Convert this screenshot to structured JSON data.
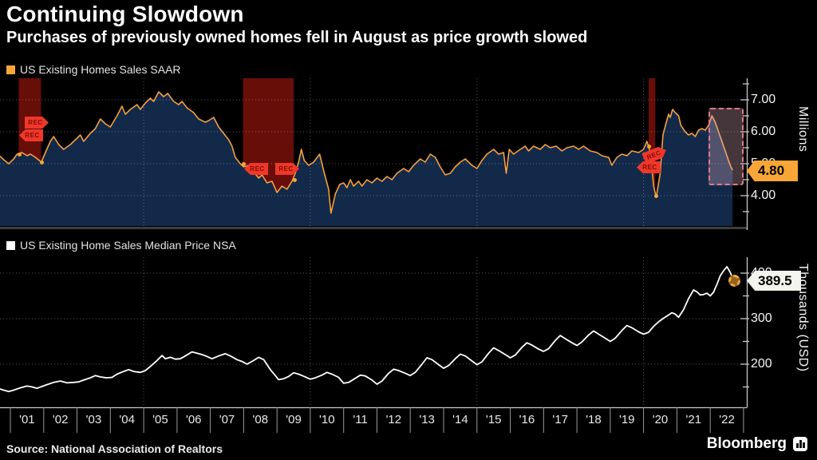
{
  "header": {
    "title": "Continuing Slowdown",
    "subtitle": "Purchases of previously owned homes fell in August as price growth slowed"
  },
  "charts": {
    "top": {
      "legend": "US Existing Homes Sales SAAR",
      "legend_color": "#f7a637",
      "line_color": "#f5a03c",
      "fill_color": "#13294a",
      "ylabel": "Millions",
      "yticks": [
        "7.00",
        "6.00",
        "5.00",
        "4.00"
      ],
      "tag": "4.80",
      "rec_label": "REC"
    },
    "bottom": {
      "legend": "US Existing Home Sales Median Price NSA",
      "legend_color": "#ffffff",
      "line_color": "#ffffff",
      "ylabel": "Thousands (USD)",
      "yticks": [
        "400",
        "300",
        "200"
      ],
      "tag": "389.5"
    }
  },
  "xaxis": {
    "labels": [
      "'01",
      "'02",
      "'03",
      "'04",
      "'05",
      "'06",
      "'07",
      "'08",
      "'09",
      "'10",
      "'11",
      "'12",
      "'13",
      "'14",
      "'15",
      "'16",
      "'17",
      "'18",
      "'19",
      "'20",
      "'21",
      "'22"
    ]
  },
  "footer": {
    "source": "Source: National Association of Realtors",
    "brand": "Bloomberg"
  },
  "chart_data": [
    {
      "type": "line",
      "name": "US Existing Homes Sales SAAR",
      "units": "millions",
      "ylim": [
        3.0,
        7.6
      ],
      "xlim": [
        2000.67,
        2023.0
      ],
      "last_value": 4.8,
      "grid_values": [
        7.0,
        6.0,
        5.0,
        4.0
      ],
      "vertical_grid_years": [
        2005,
        2010,
        2015,
        2020
      ],
      "recessions": [
        [
          2001.25,
          2001.92
        ],
        [
          2007.98,
          2009.5
        ],
        [
          2020.15,
          2020.35
        ]
      ],
      "highlight_box": {
        "x": [
          2021.95,
          2022.9
        ],
        "y": [
          4.42,
          6.8
        ]
      },
      "points": [
        [
          2000.67,
          5.25
        ],
        [
          2000.83,
          5.1
        ],
        [
          2000.95,
          5.0
        ],
        [
          2001.1,
          5.15
        ],
        [
          2001.2,
          5.3
        ],
        [
          2001.35,
          5.35
        ],
        [
          2001.5,
          5.25
        ],
        [
          2001.6,
          5.3
        ],
        [
          2001.75,
          5.2
        ],
        [
          2001.93,
          5.05
        ],
        [
          2002.05,
          5.35
        ],
        [
          2002.2,
          5.7
        ],
        [
          2002.3,
          5.85
        ],
        [
          2002.45,
          5.6
        ],
        [
          2002.6,
          5.45
        ],
        [
          2002.8,
          5.6
        ],
        [
          2002.95,
          5.75
        ],
        [
          2003.1,
          5.9
        ],
        [
          2003.2,
          5.7
        ],
        [
          2003.4,
          5.95
        ],
        [
          2003.55,
          6.1
        ],
        [
          2003.7,
          6.4
        ],
        [
          2003.85,
          6.25
        ],
        [
          2004.0,
          6.15
        ],
        [
          2004.2,
          6.5
        ],
        [
          2004.35,
          6.8
        ],
        [
          2004.45,
          6.55
        ],
        [
          2004.6,
          6.7
        ],
        [
          2004.8,
          6.85
        ],
        [
          2004.9,
          6.7
        ],
        [
          2005.05,
          6.9
        ],
        [
          2005.2,
          7.05
        ],
        [
          2005.3,
          6.95
        ],
        [
          2005.45,
          7.25
        ],
        [
          2005.6,
          7.1
        ],
        [
          2005.72,
          7.2
        ],
        [
          2005.9,
          6.95
        ],
        [
          2006.05,
          6.85
        ],
        [
          2006.15,
          6.95
        ],
        [
          2006.3,
          6.75
        ],
        [
          2006.5,
          6.6
        ],
        [
          2006.65,
          6.4
        ],
        [
          2006.85,
          6.3
        ],
        [
          2006.95,
          6.35
        ],
        [
          2007.1,
          6.45
        ],
        [
          2007.25,
          6.15
        ],
        [
          2007.4,
          5.95
        ],
        [
          2007.55,
          5.75
        ],
        [
          2007.65,
          5.55
        ],
        [
          2007.75,
          5.2
        ],
        [
          2007.9,
          5.0
        ],
        [
          2008.0,
          4.9
        ],
        [
          2008.15,
          4.95
        ],
        [
          2008.3,
          4.75
        ],
        [
          2008.45,
          4.55
        ],
        [
          2008.55,
          4.65
        ],
        [
          2008.7,
          4.4
        ],
        [
          2008.85,
          4.45
        ],
        [
          2009.0,
          4.1
        ],
        [
          2009.15,
          4.3
        ],
        [
          2009.3,
          4.2
        ],
        [
          2009.45,
          4.45
        ],
        [
          2009.55,
          4.7
        ],
        [
          2009.65,
          5.05
        ],
        [
          2009.73,
          5.45
        ],
        [
          2009.82,
          5.1
        ],
        [
          2009.95,
          4.95
        ],
        [
          2010.1,
          5.05
        ],
        [
          2010.28,
          5.3
        ],
        [
          2010.42,
          4.7
        ],
        [
          2010.55,
          4.2
        ],
        [
          2010.62,
          3.45
        ],
        [
          2010.75,
          4.05
        ],
        [
          2010.88,
          4.35
        ],
        [
          2011.0,
          4.4
        ],
        [
          2011.1,
          4.25
        ],
        [
          2011.2,
          4.5
        ],
        [
          2011.3,
          4.3
        ],
        [
          2011.45,
          4.45
        ],
        [
          2011.55,
          4.3
        ],
        [
          2011.7,
          4.5
        ],
        [
          2011.85,
          4.4
        ],
        [
          2012.0,
          4.55
        ],
        [
          2012.15,
          4.45
        ],
        [
          2012.3,
          4.6
        ],
        [
          2012.45,
          4.5
        ],
        [
          2012.6,
          4.7
        ],
        [
          2012.8,
          4.85
        ],
        [
          2012.95,
          4.75
        ],
        [
          2013.1,
          4.95
        ],
        [
          2013.3,
          5.15
        ],
        [
          2013.45,
          5.05
        ],
        [
          2013.6,
          5.3
        ],
        [
          2013.75,
          5.2
        ],
        [
          2013.9,
          4.9
        ],
        [
          2014.05,
          4.65
        ],
        [
          2014.2,
          4.7
        ],
        [
          2014.35,
          4.9
        ],
        [
          2014.5,
          5.05
        ],
        [
          2014.65,
          5.15
        ],
        [
          2014.85,
          4.95
        ],
        [
          2015.0,
          4.85
        ],
        [
          2015.15,
          5.1
        ],
        [
          2015.3,
          5.3
        ],
        [
          2015.5,
          5.45
        ],
        [
          2015.65,
          5.3
        ],
        [
          2015.8,
          5.35
        ],
        [
          2015.88,
          4.7
        ],
        [
          2015.97,
          5.45
        ],
        [
          2016.1,
          5.3
        ],
        [
          2016.3,
          5.45
        ],
        [
          2016.45,
          5.55
        ],
        [
          2016.55,
          5.4
        ],
        [
          2016.7,
          5.55
        ],
        [
          2016.9,
          5.45
        ],
        [
          2017.05,
          5.6
        ],
        [
          2017.2,
          5.5
        ],
        [
          2017.38,
          5.55
        ],
        [
          2017.55,
          5.4
        ],
        [
          2017.7,
          5.5
        ],
        [
          2017.9,
          5.55
        ],
        [
          2018.05,
          5.45
        ],
        [
          2018.2,
          5.55
        ],
        [
          2018.4,
          5.4
        ],
        [
          2018.6,
          5.35
        ],
        [
          2018.75,
          5.25
        ],
        [
          2018.95,
          5.2
        ],
        [
          2019.05,
          4.95
        ],
        [
          2019.2,
          5.2
        ],
        [
          2019.35,
          5.3
        ],
        [
          2019.5,
          5.25
        ],
        [
          2019.65,
          5.4
        ],
        [
          2019.85,
          5.35
        ],
        [
          2020.0,
          5.45
        ],
        [
          2020.1,
          5.7
        ],
        [
          2020.22,
          5.3
        ],
        [
          2020.3,
          4.3
        ],
        [
          2020.38,
          3.95
        ],
        [
          2020.5,
          4.7
        ],
        [
          2020.58,
          5.9
        ],
        [
          2020.67,
          6.25
        ],
        [
          2020.75,
          6.55
        ],
        [
          2020.8,
          6.45
        ],
        [
          2020.87,
          6.7
        ],
        [
          2020.95,
          6.6
        ],
        [
          2021.05,
          6.5
        ],
        [
          2021.12,
          6.2
        ],
        [
          2021.25,
          6.0
        ],
        [
          2021.35,
          5.9
        ],
        [
          2021.45,
          5.95
        ],
        [
          2021.55,
          5.85
        ],
        [
          2021.65,
          6.05
        ],
        [
          2021.75,
          6.1
        ],
        [
          2021.85,
          6.05
        ],
        [
          2021.95,
          6.2
        ],
        [
          2022.05,
          6.5
        ],
        [
          2022.15,
          6.3
        ],
        [
          2022.25,
          6.0
        ],
        [
          2022.35,
          5.7
        ],
        [
          2022.45,
          5.4
        ],
        [
          2022.55,
          5.1
        ],
        [
          2022.62,
          4.9
        ],
        [
          2022.67,
          4.8
        ]
      ]
    },
    {
      "type": "line",
      "name": "US Existing Home Sales Median Price NSA",
      "units": "thousands USD",
      "ylim": [
        110,
        430
      ],
      "xlim": [
        2000.67,
        2023.0
      ],
      "last_value": 389.5,
      "grid_values": [
        400,
        300,
        200
      ],
      "vertical_grid_years": [
        2005,
        2010,
        2015,
        2020
      ],
      "points": [
        [
          2000.67,
          146
        ],
        [
          2000.8,
          143
        ],
        [
          2000.95,
          140
        ],
        [
          2001.1,
          143
        ],
        [
          2001.3,
          148
        ],
        [
          2001.5,
          152
        ],
        [
          2001.65,
          150
        ],
        [
          2001.8,
          147
        ],
        [
          2001.95,
          151
        ],
        [
          2002.1,
          155
        ],
        [
          2002.3,
          160
        ],
        [
          2002.5,
          163
        ],
        [
          2002.7,
          159
        ],
        [
          2002.9,
          160
        ],
        [
          2003.05,
          161
        ],
        [
          2003.2,
          165
        ],
        [
          2003.4,
          170
        ],
        [
          2003.55,
          175
        ],
        [
          2003.7,
          172
        ],
        [
          2003.9,
          170
        ],
        [
          2004.05,
          171
        ],
        [
          2004.2,
          178
        ],
        [
          2004.4,
          184
        ],
        [
          2004.55,
          188
        ],
        [
          2004.7,
          184
        ],
        [
          2004.9,
          182
        ],
        [
          2005.05,
          186
        ],
        [
          2005.2,
          195
        ],
        [
          2005.4,
          208
        ],
        [
          2005.55,
          219
        ],
        [
          2005.65,
          212
        ],
        [
          2005.8,
          215
        ],
        [
          2005.95,
          211
        ],
        [
          2006.1,
          212
        ],
        [
          2006.25,
          218
        ],
        [
          2006.45,
          227
        ],
        [
          2006.6,
          224
        ],
        [
          2006.75,
          221
        ],
        [
          2006.9,
          217
        ],
        [
          2007.05,
          212
        ],
        [
          2007.25,
          218
        ],
        [
          2007.45,
          223
        ],
        [
          2007.6,
          218
        ],
        [
          2007.8,
          210
        ],
        [
          2007.95,
          206
        ],
        [
          2008.1,
          200
        ],
        [
          2008.3,
          208
        ],
        [
          2008.45,
          215
        ],
        [
          2008.6,
          210
        ],
        [
          2008.8,
          188
        ],
        [
          2008.95,
          175
        ],
        [
          2009.05,
          166
        ],
        [
          2009.2,
          168
        ],
        [
          2009.35,
          173
        ],
        [
          2009.5,
          181
        ],
        [
          2009.65,
          178
        ],
        [
          2009.85,
          172
        ],
        [
          2010.0,
          167
        ],
        [
          2010.15,
          170
        ],
        [
          2010.35,
          176
        ],
        [
          2010.5,
          182
        ],
        [
          2010.65,
          178
        ],
        [
          2010.85,
          171
        ],
        [
          2011.0,
          158
        ],
        [
          2011.15,
          160
        ],
        [
          2011.35,
          169
        ],
        [
          2011.5,
          176
        ],
        [
          2011.65,
          174
        ],
        [
          2011.85,
          165
        ],
        [
          2012.0,
          156
        ],
        [
          2012.15,
          163
        ],
        [
          2012.35,
          180
        ],
        [
          2012.5,
          189
        ],
        [
          2012.65,
          186
        ],
        [
          2012.85,
          180
        ],
        [
          2013.0,
          175
        ],
        [
          2013.15,
          182
        ],
        [
          2013.35,
          200
        ],
        [
          2013.5,
          214
        ],
        [
          2013.65,
          210
        ],
        [
          2013.85,
          199
        ],
        [
          2014.0,
          191
        ],
        [
          2014.15,
          197
        ],
        [
          2014.35,
          212
        ],
        [
          2014.5,
          222
        ],
        [
          2014.65,
          218
        ],
        [
          2014.85,
          207
        ],
        [
          2015.0,
          199
        ],
        [
          2015.15,
          205
        ],
        [
          2015.35,
          224
        ],
        [
          2015.5,
          236
        ],
        [
          2015.65,
          230
        ],
        [
          2015.85,
          221
        ],
        [
          2016.0,
          214
        ],
        [
          2016.15,
          220
        ],
        [
          2016.35,
          237
        ],
        [
          2016.5,
          247
        ],
        [
          2016.65,
          242
        ],
        [
          2016.85,
          233
        ],
        [
          2017.0,
          228
        ],
        [
          2017.15,
          234
        ],
        [
          2017.35,
          252
        ],
        [
          2017.5,
          263
        ],
        [
          2017.65,
          256
        ],
        [
          2017.85,
          247
        ],
        [
          2018.0,
          241
        ],
        [
          2018.15,
          249
        ],
        [
          2018.35,
          264
        ],
        [
          2018.5,
          273
        ],
        [
          2018.65,
          266
        ],
        [
          2018.85,
          257
        ],
        [
          2019.0,
          250
        ],
        [
          2019.15,
          257
        ],
        [
          2019.35,
          274
        ],
        [
          2019.5,
          285
        ],
        [
          2019.65,
          280
        ],
        [
          2019.85,
          271
        ],
        [
          2020.0,
          266
        ],
        [
          2020.15,
          270
        ],
        [
          2020.3,
          283
        ],
        [
          2020.45,
          293
        ],
        [
          2020.6,
          301
        ],
        [
          2020.75,
          308
        ],
        [
          2020.85,
          313
        ],
        [
          2020.95,
          310
        ],
        [
          2021.05,
          303
        ],
        [
          2021.2,
          320
        ],
        [
          2021.35,
          344
        ],
        [
          2021.5,
          363
        ],
        [
          2021.6,
          359
        ],
        [
          2021.7,
          352
        ],
        [
          2021.8,
          353
        ],
        [
          2021.9,
          356
        ],
        [
          2022.0,
          350
        ],
        [
          2022.1,
          358
        ],
        [
          2022.2,
          375
        ],
        [
          2022.3,
          394
        ],
        [
          2022.4,
          405
        ],
        [
          2022.5,
          414
        ],
        [
          2022.6,
          402
        ],
        [
          2022.67,
          389.5
        ]
      ]
    }
  ]
}
